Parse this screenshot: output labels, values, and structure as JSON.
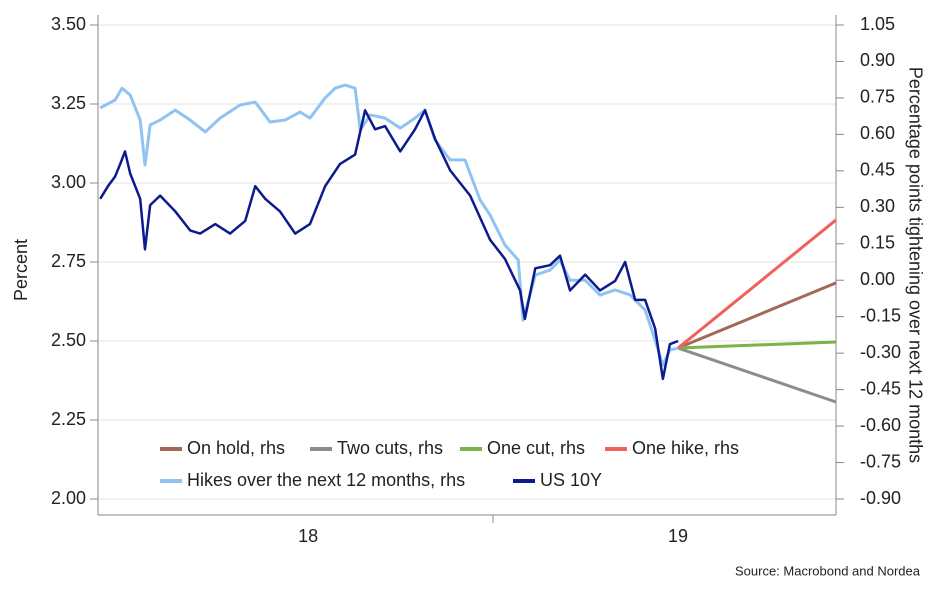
{
  "chart_data": {
    "type": "line",
    "ylabel": "Percent",
    "y2label": "Percentage points tightening over next 12 months",
    "source": "Source: Macrobond and Nordea",
    "xlim": [
      17.432,
      19.427
    ],
    "xticks": [
      {
        "value": 18,
        "label": "18"
      },
      {
        "value": 19,
        "label": "19"
      }
    ],
    "ylim": [
      2.0,
      3.5
    ],
    "yticks": [
      {
        "value": 2.0,
        "label": "2.00"
      },
      {
        "value": 2.25,
        "label": "2.25"
      },
      {
        "value": 2.5,
        "label": "2.50"
      },
      {
        "value": 2.75,
        "label": "2.75"
      },
      {
        "value": 3.0,
        "label": "3.00"
      },
      {
        "value": 3.25,
        "label": "3.25"
      },
      {
        "value": 3.5,
        "label": "3.50"
      }
    ],
    "y2lim": [
      -0.9,
      1.05
    ],
    "y2ticks": [
      {
        "value": -0.9,
        "label": "-0.90"
      },
      -0.75,
      {
        "value": -0.6,
        "label": "-0.60"
      },
      -0.45,
      {
        "value": -0.3,
        "label": "-0.30"
      },
      -0.15,
      {
        "value": 0,
        "label": "0.00"
      },
      0.15,
      {
        "value": 0.3,
        "label": "0.30"
      },
      0.45,
      {
        "value": 0.6,
        "label": "0.60"
      },
      0.75,
      {
        "value": 0.9,
        "label": "0.90"
      },
      1.05
    ],
    "grid": true,
    "series": [
      {
        "name": "On hold, rhs",
        "color": "#a3685b",
        "axis": "y2",
        "x": [
          19.0,
          19.427
        ],
        "values": [
          -0.279,
          -0.011
        ]
      },
      {
        "name": "Two cuts, rhs",
        "color": "#8c8c8c",
        "axis": "y2",
        "x": [
          19.0,
          19.427
        ],
        "values": [
          -0.279,
          -0.501
        ]
      },
      {
        "name": "One cut, rhs",
        "color": "#7db246",
        "axis": "y2",
        "x": [
          19.0,
          19.427
        ],
        "values": [
          -0.279,
          -0.254
        ]
      },
      {
        "name": "One hike, rhs",
        "color": "#f2605c",
        "axis": "y2",
        "x": [
          19.0,
          19.427
        ],
        "values": [
          -0.279,
          0.248
        ]
      },
      {
        "name": "Hikes over the next 12 months, rhs",
        "color": "#8fc4f2",
        "axis": "y2",
        "x": [
          17.438,
          17.478,
          17.497,
          17.519,
          17.546,
          17.559,
          17.573,
          17.6,
          17.641,
          17.681,
          17.722,
          17.762,
          17.816,
          17.857,
          17.897,
          17.938,
          17.978,
          18.005,
          18.046,
          18.073,
          18.1,
          18.127,
          18.141,
          18.168,
          18.208,
          18.249,
          18.289,
          18.316,
          18.343,
          18.384,
          18.424,
          18.465,
          18.492,
          18.532,
          18.568,
          18.581,
          18.614,
          18.654,
          18.681,
          18.708,
          18.749,
          18.789,
          18.83,
          18.871,
          18.911,
          18.938,
          18.959,
          18.978,
          19.0
        ],
        "values": [
          0.709,
          0.741,
          0.79,
          0.762,
          0.659,
          0.474,
          0.639,
          0.659,
          0.7,
          0.659,
          0.61,
          0.667,
          0.721,
          0.733,
          0.651,
          0.659,
          0.692,
          0.667,
          0.75,
          0.79,
          0.803,
          0.79,
          0.618,
          0.68,
          0.667,
          0.626,
          0.667,
          0.7,
          0.577,
          0.495,
          0.495,
          0.33,
          0.268,
          0.145,
          0.083,
          -0.164,
          0.021,
          0.042,
          0.083,
          0,
          0,
          -0.061,
          -0.04,
          -0.061,
          -0.123,
          -0.246,
          -0.349,
          -0.287,
          -0.279
        ]
      },
      {
        "name": "US 10Y",
        "color": "#0d1a8c",
        "x": [
          17.438,
          17.459,
          17.478,
          17.492,
          17.505,
          17.519,
          17.546,
          17.559,
          17.573,
          17.6,
          17.641,
          17.681,
          17.708,
          17.749,
          17.789,
          17.83,
          17.857,
          17.884,
          17.924,
          17.965,
          18.005,
          18.046,
          18.086,
          18.127,
          18.154,
          18.181,
          18.208,
          18.249,
          18.289,
          18.316,
          18.343,
          18.384,
          18.438,
          18.492,
          18.532,
          18.573,
          18.586,
          18.614,
          18.654,
          18.681,
          18.708,
          18.749,
          18.789,
          18.83,
          18.857,
          18.884,
          18.911,
          18.938,
          18.959,
          18.978,
          19.0
        ],
        "values": [
          2.95,
          2.99,
          3.02,
          3.06,
          3.1,
          3.03,
          2.95,
          2.79,
          2.93,
          2.96,
          2.91,
          2.85,
          2.84,
          2.87,
          2.84,
          2.88,
          2.99,
          2.95,
          2.91,
          2.84,
          2.87,
          2.99,
          3.06,
          3.09,
          3.23,
          3.17,
          3.18,
          3.1,
          3.17,
          3.23,
          3.14,
          3.04,
          2.96,
          2.82,
          2.76,
          2.66,
          2.57,
          2.73,
          2.74,
          2.77,
          2.66,
          2.71,
          2.66,
          2.69,
          2.75,
          2.63,
          2.63,
          2.54,
          2.38,
          2.49,
          2.5
        ]
      }
    ]
  }
}
